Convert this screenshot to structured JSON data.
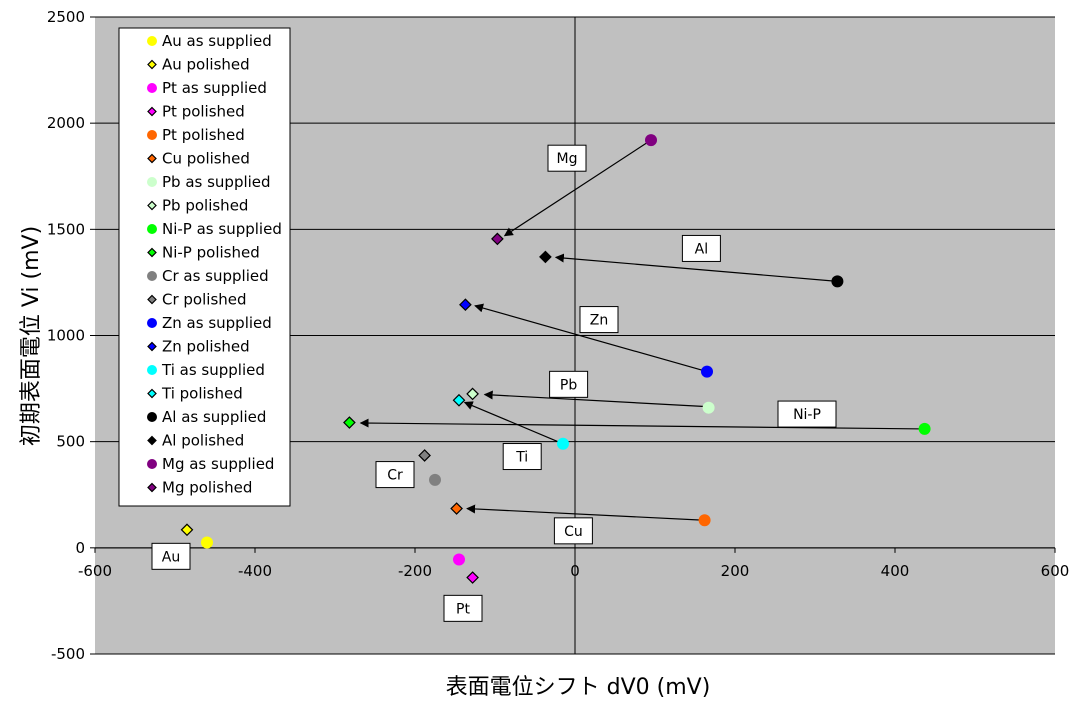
{
  "chart_data": {
    "type": "scatter",
    "xlabel": "表面電位シフト dV0  (mV)",
    "ylabel": "初期表面電位 Vi  (mV)",
    "xlim": [
      -600,
      600
    ],
    "ylim": [
      -500,
      2500
    ],
    "x_ticks": [
      "-600",
      "-400",
      "-200",
      "0",
      "200",
      "400",
      "600"
    ],
    "y_ticks": [
      "-500",
      "0",
      "500",
      "1000",
      "1500",
      "2000",
      "2500"
    ],
    "grid": "horizontal",
    "legend_position": "top-left",
    "plot_background": "#c0c0c0",
    "series": [
      {
        "name": "Au as supplied",
        "marker": "circle",
        "color": "#ffff00",
        "points": [
          {
            "x": -460,
            "y": 25
          }
        ]
      },
      {
        "name": "Au polished",
        "marker": "diamond",
        "color": "#ffff00",
        "points": [
          {
            "x": -485,
            "y": 85
          }
        ]
      },
      {
        "name": "Pt as supplied",
        "marker": "circle",
        "color": "#ff00ff",
        "points": [
          {
            "x": -145,
            "y": -55
          }
        ]
      },
      {
        "name": "Pt polished",
        "marker": "diamond",
        "color": "#ff00ff",
        "points": [
          {
            "x": -128,
            "y": -140
          }
        ]
      },
      {
        "name": "Pt polished",
        "marker": "circle",
        "color": "#ff6600",
        "points": [
          {
            "x": 162,
            "y": 130
          }
        ]
      },
      {
        "name": "Cu polished",
        "marker": "diamond",
        "color": "#ff6600",
        "points": [
          {
            "x": -148,
            "y": 185
          }
        ]
      },
      {
        "name": "Pb as supplied",
        "marker": "circle",
        "color": "#ccffcc",
        "points": [
          {
            "x": 167,
            "y": 660
          }
        ]
      },
      {
        "name": "Pb polished",
        "marker": "diamond",
        "color": "#ccffcc",
        "points": [
          {
            "x": -128,
            "y": 725
          }
        ]
      },
      {
        "name": "Ni-P as supplied",
        "marker": "circle",
        "color": "#00ff00",
        "points": [
          {
            "x": 437,
            "y": 560
          }
        ]
      },
      {
        "name": "Ni-P polished",
        "marker": "diamond",
        "color": "#00ff00",
        "points": [
          {
            "x": -282,
            "y": 590
          }
        ]
      },
      {
        "name": "Cr as supplied",
        "marker": "circle",
        "color": "#808080",
        "points": [
          {
            "x": -175,
            "y": 320
          }
        ]
      },
      {
        "name": "Cr polished",
        "marker": "diamond",
        "color": "#808080",
        "points": [
          {
            "x": -188,
            "y": 435
          }
        ]
      },
      {
        "name": "Zn as supplied",
        "marker": "circle",
        "color": "#0000ff",
        "points": [
          {
            "x": 165,
            "y": 830
          }
        ]
      },
      {
        "name": "Zn polished",
        "marker": "diamond",
        "color": "#0000ff",
        "points": [
          {
            "x": -137,
            "y": 1145
          }
        ]
      },
      {
        "name": "Ti as supplied",
        "marker": "circle",
        "color": "#00ffff",
        "points": [
          {
            "x": -15,
            "y": 490
          }
        ]
      },
      {
        "name": "Ti polished",
        "marker": "diamond",
        "color": "#00ffff",
        "points": [
          {
            "x": -145,
            "y": 695
          }
        ]
      },
      {
        "name": "Al as supplied",
        "marker": "circle",
        "color": "#000000",
        "points": [
          {
            "x": 328,
            "y": 1255
          }
        ]
      },
      {
        "name": "Al polished",
        "marker": "diamond",
        "color": "#000000",
        "points": [
          {
            "x": -37,
            "y": 1370
          }
        ]
      },
      {
        "name": "Mg as supplied",
        "marker": "circle",
        "color": "#800080",
        "points": [
          {
            "x": 95,
            "y": 1920
          }
        ]
      },
      {
        "name": "Mg polished",
        "marker": "diamond",
        "color": "#800080",
        "points": [
          {
            "x": -97,
            "y": 1455
          }
        ]
      }
    ],
    "arrows": [
      {
        "from": [
          95,
          1920
        ],
        "to": [
          -88,
          1470
        ]
      },
      {
        "from": [
          328,
          1255
        ],
        "to": [
          -24,
          1368
        ]
      },
      {
        "from": [
          165,
          830
        ],
        "to": [
          -125,
          1140
        ]
      },
      {
        "from": [
          165,
          665
        ],
        "to": [
          -113,
          722
        ]
      },
      {
        "from": [
          437,
          560
        ],
        "to": [
          -268,
          588
        ]
      },
      {
        "from": [
          -15,
          490
        ],
        "to": [
          -138,
          685
        ]
      },
      {
        "from": [
          162,
          130
        ],
        "to": [
          -135,
          185
        ]
      }
    ],
    "annotations": [
      {
        "text": "Mg",
        "x": -10,
        "y": 1835
      },
      {
        "text": "Al",
        "x": 158,
        "y": 1410
      },
      {
        "text": "Zn",
        "x": 30,
        "y": 1075
      },
      {
        "text": "Pb",
        "x": -8,
        "y": 770
      },
      {
        "text": "Ni-P",
        "x": 290,
        "y": 630
      },
      {
        "text": "Ti",
        "x": -66,
        "y": 430
      },
      {
        "text": "Cr",
        "x": -225,
        "y": 345
      },
      {
        "text": "Cu",
        "x": -2,
        "y": 80
      },
      {
        "text": "Au",
        "x": -505,
        "y": -40
      },
      {
        "text": "Pt",
        "x": -140,
        "y": -285
      }
    ]
  }
}
